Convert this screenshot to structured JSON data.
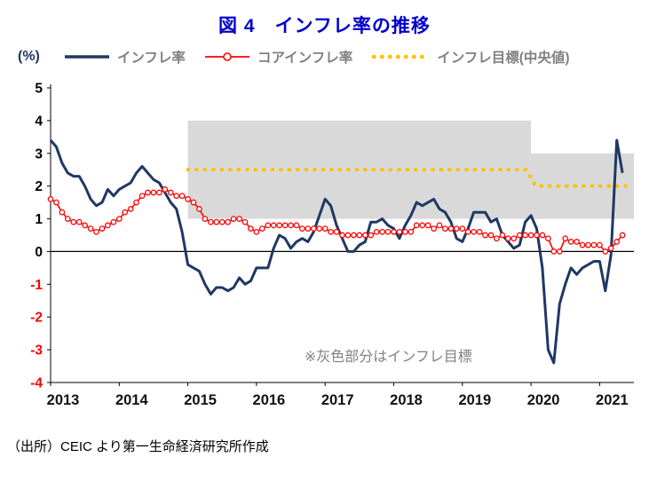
{
  "page": {
    "title": "図 4　インフレ率の推移",
    "source": "（出所）CEIC より第一生命経済研究所作成"
  },
  "chart_data": {
    "type": "line",
    "title": "図 4　インフレ率の推移",
    "unit_label": "(%)",
    "xlabel": "",
    "ylabel": "(%)",
    "xlim": [
      2013,
      2021.5
    ],
    "ylim": [
      -4,
      5
    ],
    "yticks": [
      5,
      4,
      3,
      2,
      1,
      0,
      -1,
      -2,
      -3,
      -4
    ],
    "xticks": [
      2013,
      2014,
      2015,
      2016,
      2017,
      2018,
      2019,
      2020,
      2021
    ],
    "grid": false,
    "legend_position": "top",
    "annotation": "※灰色部分はインフレ目標",
    "colors": {
      "title": "#0000CC",
      "band": "#D9D9D9",
      "negative_tick": "#FF0000",
      "legend_text": "#808080",
      "axis": "#000000"
    },
    "bands": [
      {
        "label": "inflation-target-range-2015-2019",
        "x": [
          2015,
          2020
        ],
        "y": [
          1,
          4
        ]
      },
      {
        "label": "inflation-target-range-2020-",
        "x": [
          2020,
          2021.5
        ],
        "y": [
          1,
          3
        ]
      }
    ],
    "series": [
      {
        "id": "inflation",
        "name": "インフレ率",
        "color": "#1F3864",
        "style": "solid",
        "line_width": 3,
        "z": 2,
        "x_start": 2013,
        "x_interval_months": 1,
        "values": [
          3.4,
          3.2,
          2.7,
          2.4,
          2.3,
          2.3,
          2.0,
          1.6,
          1.4,
          1.5,
          1.9,
          1.7,
          1.9,
          2.0,
          2.1,
          2.4,
          2.6,
          2.4,
          2.2,
          2.1,
          1.8,
          1.5,
          1.3,
          0.6,
          -0.4,
          -0.5,
          -0.6,
          -1.0,
          -1.3,
          -1.1,
          -1.1,
          -1.2,
          -1.1,
          -0.8,
          -1.0,
          -0.9,
          -0.5,
          -0.5,
          -0.5,
          0.1,
          0.5,
          0.4,
          0.1,
          0.3,
          0.4,
          0.3,
          0.6,
          1.1,
          1.6,
          1.4,
          0.8,
          0.4,
          0.0,
          0.0,
          0.2,
          0.3,
          0.9,
          0.9,
          1.0,
          0.8,
          0.7,
          0.4,
          0.8,
          1.1,
          1.5,
          1.4,
          1.5,
          1.6,
          1.3,
          1.2,
          0.9,
          0.4,
          0.3,
          0.7,
          1.2,
          1.2,
          1.2,
          0.9,
          1.0,
          0.5,
          0.3,
          0.1,
          0.2,
          0.9,
          1.1,
          0.7,
          -0.5,
          -3.0,
          -3.4,
          -1.6,
          -1.0,
          -0.5,
          -0.7,
          -0.5,
          -0.4,
          -0.3,
          -0.3,
          -1.2,
          -0.1,
          3.4,
          2.4
        ]
      },
      {
        "id": "core-inflation",
        "name": "コアインフレ率",
        "color": "#FF0000",
        "style": "solid_circle_markers",
        "line_width": 1.6,
        "z": 3,
        "x_start": 2013,
        "x_interval_months": 1,
        "values": [
          1.6,
          1.5,
          1.2,
          1.0,
          0.9,
          0.9,
          0.8,
          0.7,
          0.6,
          0.7,
          0.8,
          0.9,
          1.0,
          1.2,
          1.3,
          1.5,
          1.7,
          1.8,
          1.8,
          1.8,
          1.9,
          1.8,
          1.7,
          1.7,
          1.6,
          1.5,
          1.3,
          1.0,
          0.9,
          0.9,
          0.9,
          0.9,
          1.0,
          1.0,
          0.9,
          0.7,
          0.6,
          0.7,
          0.8,
          0.8,
          0.8,
          0.8,
          0.8,
          0.8,
          0.7,
          0.7,
          0.7,
          0.7,
          0.7,
          0.6,
          0.6,
          0.5,
          0.5,
          0.5,
          0.5,
          0.5,
          0.5,
          0.6,
          0.6,
          0.6,
          0.6,
          0.6,
          0.6,
          0.6,
          0.8,
          0.8,
          0.8,
          0.7,
          0.8,
          0.7,
          0.7,
          0.7,
          0.7,
          0.6,
          0.6,
          0.6,
          0.5,
          0.5,
          0.4,
          0.5,
          0.4,
          0.4,
          0.5,
          0.5,
          0.5,
          0.5,
          0.5,
          0.4,
          0.0,
          0.0,
          0.4,
          0.3,
          0.3,
          0.2,
          0.2,
          0.2,
          0.2,
          0.0,
          0.1,
          0.3,
          0.5
        ]
      },
      {
        "id": "inflation-target",
        "name": "インフレ目標(中央値)",
        "color": "#FFC000",
        "style": "dotted",
        "line_width": 4.2,
        "z": 1,
        "x": [
          2015,
          2019.93,
          2020.07,
          2021.5
        ],
        "values": [
          2.5,
          2.5,
          2.0,
          2.0
        ]
      }
    ]
  }
}
